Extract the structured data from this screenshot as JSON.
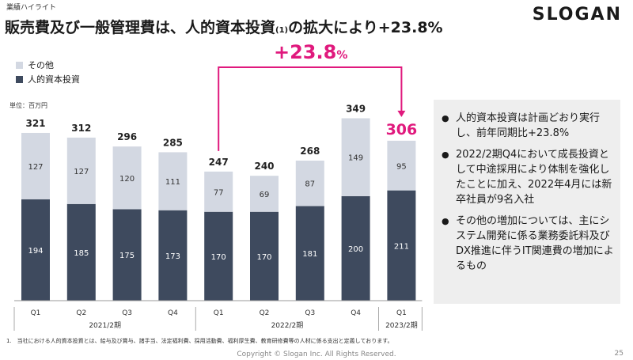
{
  "header": {
    "section": "業績ハイライト",
    "title": "販売費及び一般管理費は、人的資本投資",
    "title_note": "(1)",
    "title_suffix": "の拡大により+23.8%",
    "logo": "SLOGAN"
  },
  "legend": {
    "other": "その他",
    "human_capital": "人的資本投資"
  },
  "unit": "単位：百万円",
  "growth": {
    "value": "+23.8",
    "unit": "%"
  },
  "colors": {
    "other": "#d3d8e2",
    "human_capital": "#3e4a5e",
    "accent": "#e0197d"
  },
  "chart_data": {
    "type": "bar",
    "stacked": true,
    "categories": [
      "Q1",
      "Q2",
      "Q3",
      "Q4",
      "Q1",
      "Q2",
      "Q3",
      "Q4",
      "Q1"
    ],
    "groups": [
      {
        "label": "2021/2期",
        "count": 4
      },
      {
        "label": "2022/2期",
        "count": 4
      },
      {
        "label": "2023/2期",
        "count": 1
      }
    ],
    "series": [
      {
        "name": "人的資本投資",
        "values": [
          194,
          185,
          175,
          173,
          170,
          170,
          181,
          200,
          211
        ]
      },
      {
        "name": "その他",
        "values": [
          127,
          127,
          120,
          111,
          77,
          69,
          87,
          149,
          95
        ]
      }
    ],
    "totals": [
      "321",
      "312",
      "296",
      "285",
      "247",
      "240",
      "268",
      "349",
      "306"
    ],
    "highlight_index": 8,
    "comparison_from_index": 4,
    "ylim": [
      0,
      360
    ]
  },
  "comments": [
    "人的資本投資は計画どおり実行し、前年同期比+23.8%",
    "2022/2期Q4において成長投資として中途採用により体制を強化したことに加え、2022年4月には新卒社員が9名入社",
    "その他の増加については、主にシステム開発に係る業務委託料及びDX推進に伴うIT関連費の増加によるもの"
  ],
  "footnote": "1.　当社における人的資本投資とは、給与及び賞与、諸手当、法定福利費、採用活動費、福利厚生費、教育研修費等の人材に係る支出と定義しております。",
  "footer": "Copyright © Slogan Inc. All Rights Reserved.",
  "page_number": "25"
}
